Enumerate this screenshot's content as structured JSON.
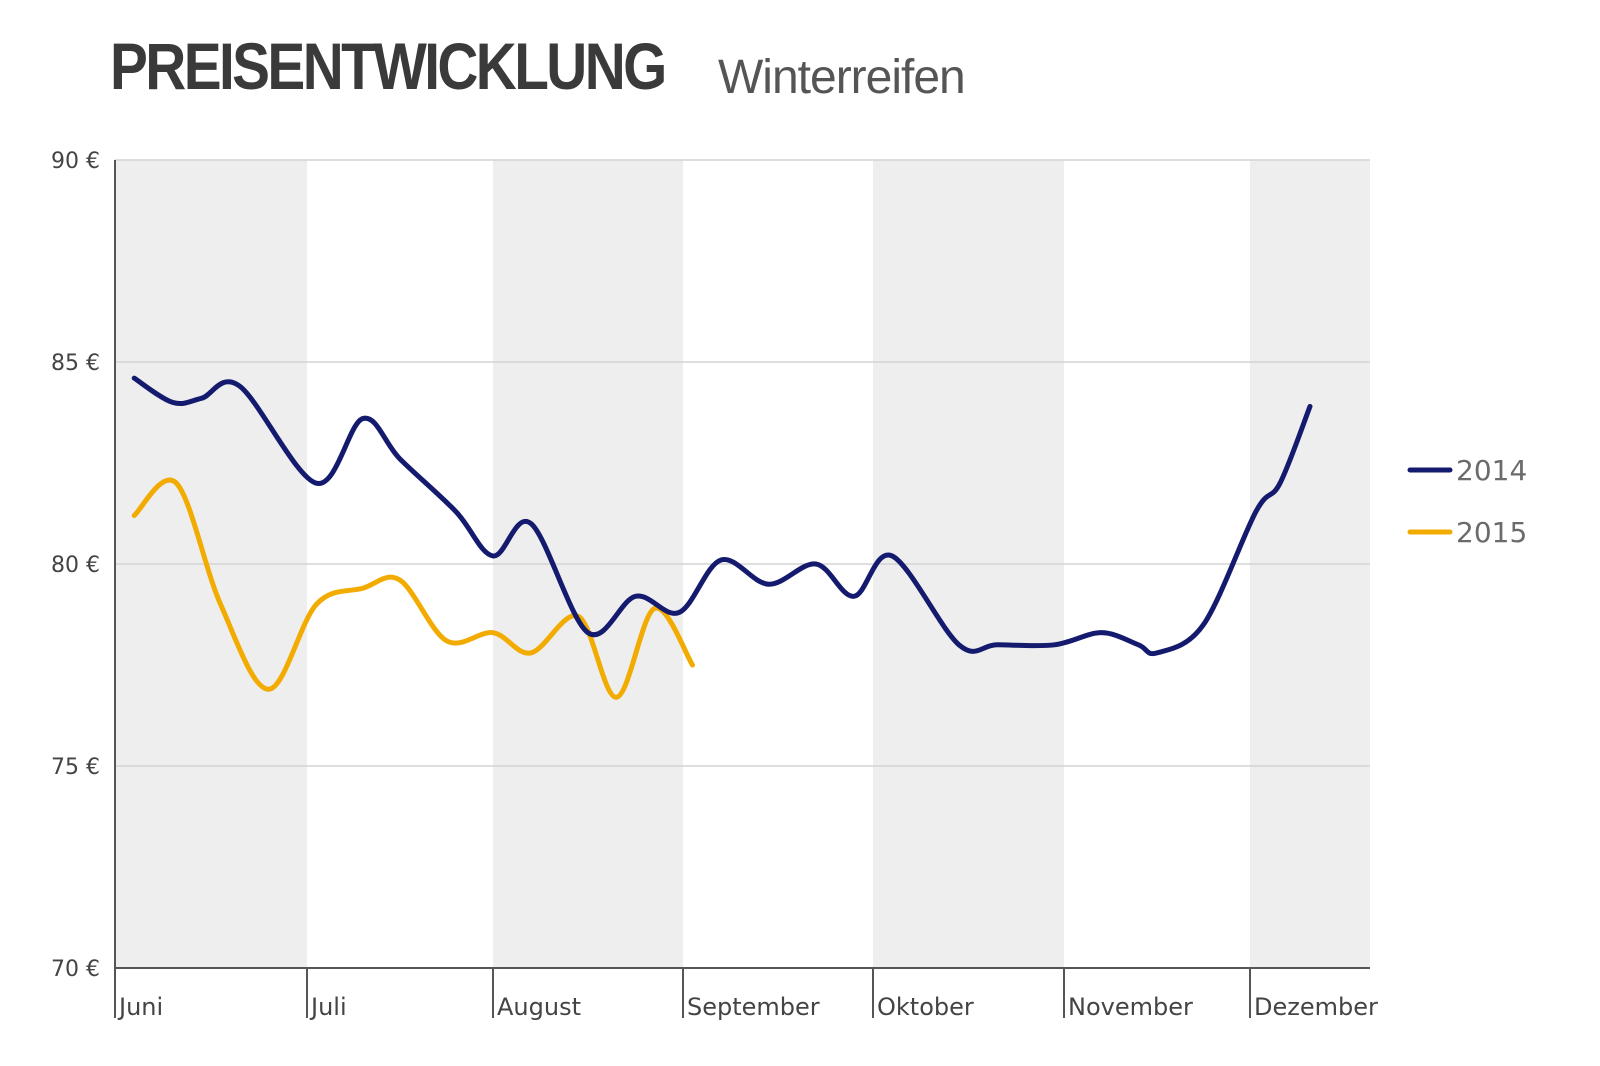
{
  "title": "PREISENTWICKLUNG",
  "subtitle": "Winterreifen",
  "chart_data": {
    "type": "line",
    "ylim": [
      70,
      90
    ],
    "y_ticks": [
      "90 €",
      "85 €",
      "80 €",
      "75 €",
      "70 €"
    ],
    "y_tick_values": [
      90,
      85,
      80,
      75,
      70
    ],
    "categories": [
      "Juni",
      "Juli",
      "August",
      "September",
      "Oktober",
      "November",
      "Dezember"
    ],
    "grid": "horizontal",
    "band_colors": [
      "#eeeeee",
      "#ffffff"
    ],
    "legend_position": "right",
    "series": [
      {
        "name": "2014",
        "color": "#141a6e",
        "values": [
          84.6,
          84.0,
          84.1,
          84.4,
          82.0,
          83.6,
          82.6,
          81.3,
          80.2,
          81.0,
          78.3,
          79.2,
          78.8,
          80.1,
          79.5,
          80.0,
          79.2,
          80.2,
          78.0,
          78.0,
          78.0,
          78.3,
          78.0,
          77.8,
          78.5,
          81.3,
          82.0,
          83.9
        ],
        "x": [
          0.1,
          0.3,
          0.45,
          0.65,
          1.05,
          1.3,
          1.5,
          1.8,
          2.0,
          2.2,
          2.5,
          2.75,
          2.98,
          3.2,
          3.45,
          3.7,
          3.9,
          4.1,
          4.45,
          4.65,
          4.95,
          5.2,
          5.4,
          5.5,
          5.75,
          6.05,
          6.25,
          6.5
        ]
      },
      {
        "name": "2015",
        "color": "#f2ab00",
        "values": [
          81.2,
          82.0,
          79.0,
          76.9,
          79.0,
          79.4,
          79.6,
          78.1,
          78.3,
          77.8,
          78.7,
          76.7,
          78.9,
          77.5
        ],
        "x": [
          0.1,
          0.32,
          0.55,
          0.8,
          1.05,
          1.3,
          1.5,
          1.75,
          2.0,
          2.2,
          2.45,
          2.65,
          2.85,
          3.05
        ]
      }
    ]
  }
}
